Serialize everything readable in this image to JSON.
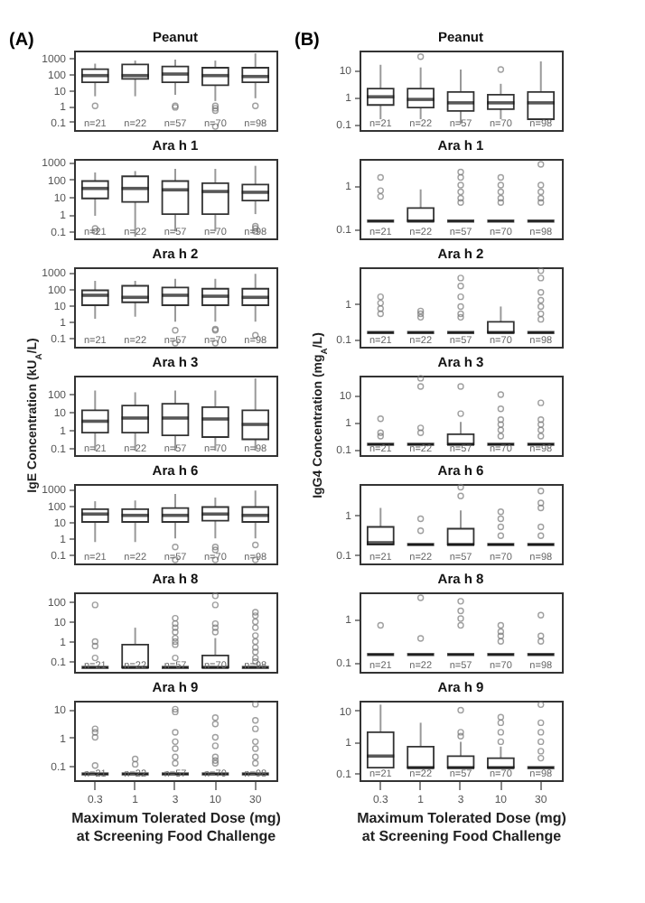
{
  "chart_data": [
    {
      "type": "box",
      "title": "Peanut",
      "categories": [
        "0.3",
        "1",
        "3",
        "10",
        "30"
      ],
      "log": true,
      "ylim": [
        0.03,
        3000
      ],
      "yticks": [
        0.1,
        1,
        10,
        100,
        1000
      ],
      "tick_labels": "y",
      "annotations": [
        "(A)",
        "n=21",
        "n=22",
        "n=57",
        "n=70",
        "n=98"
      ],
      "boxes": [
        {
          "low": 4,
          "q1": 30,
          "median": 80,
          "q3": 200,
          "high": 450,
          "outliers": [
            1
          ]
        },
        {
          "low": 4,
          "q1": 50,
          "median": 80,
          "q3": 400,
          "high": 700
        },
        {
          "low": 5,
          "q1": 30,
          "median": 100,
          "q3": 300,
          "high": 800,
          "outliers": [
            0.8,
            1
          ]
        },
        {
          "low": 2,
          "q1": 20,
          "median": 80,
          "q3": 250,
          "high": 700,
          "outliers": [
            0.5,
            0.7,
            1,
            0.05
          ]
        },
        {
          "low": 3,
          "q1": 30,
          "median": 70,
          "q3": 250,
          "high": 2000,
          "outliers": [
            1
          ]
        }
      ]
    },
    {
      "type": "box",
      "title": "Ara h 1",
      "categories": [
        "0.3",
        "1",
        "3",
        "10",
        "30"
      ],
      "log": true,
      "ylim": [
        0.04,
        1500
      ],
      "yticks": [
        0.1,
        1,
        10,
        100,
        1000
      ],
      "tick_labels": "y",
      "annotations": [
        "n=21",
        "n=22",
        "n=57",
        "n=70",
        "n=98"
      ],
      "boxes": [
        {
          "low": 0.8,
          "q1": 8,
          "median": 30,
          "q3": 80,
          "high": 250,
          "outliers": [
            0.1,
            0.15
          ]
        },
        {
          "low": 0.05,
          "q1": 5,
          "median": 30,
          "q3": 150,
          "high": 300
        },
        {
          "low": 0.1,
          "q1": 1,
          "median": 25,
          "q3": 80,
          "high": 400
        },
        {
          "low": 0.1,
          "q1": 1,
          "median": 20,
          "q3": 60,
          "high": 400
        },
        {
          "low": 1,
          "q1": 6,
          "median": 18,
          "q3": 50,
          "high": 600,
          "outliers": [
            0.1,
            0.15,
            0.2
          ]
        }
      ]
    },
    {
      "type": "box",
      "title": "Ara h 2",
      "categories": [
        "0.3",
        "1",
        "3",
        "10",
        "30"
      ],
      "log": true,
      "ylim": [
        0.03,
        2000
      ],
      "yticks": [
        0.1,
        1,
        10,
        100,
        1000
      ],
      "tick_labels": "y",
      "annotations": [
        "n=21",
        "n=22",
        "n=57",
        "n=70",
        "n=98"
      ],
      "boxes": [
        {
          "low": 1.5,
          "q1": 10,
          "median": 40,
          "q3": 80,
          "high": 300
        },
        {
          "low": 2,
          "q1": 15,
          "median": 30,
          "q3": 150,
          "high": 300
        },
        {
          "low": 1,
          "q1": 10,
          "median": 40,
          "q3": 120,
          "high": 400,
          "outliers": [
            0.3,
            0.05
          ]
        },
        {
          "low": 1,
          "q1": 10,
          "median": 35,
          "q3": 100,
          "high": 400,
          "outliers": [
            0.3,
            0.35,
            0.05
          ]
        },
        {
          "low": 1,
          "q1": 10,
          "median": 30,
          "q3": 100,
          "high": 800,
          "outliers": [
            0.15
          ]
        }
      ]
    },
    {
      "type": "box",
      "title": "Ara h 3",
      "ylabel": "IgE Concentration (kU$_{A}$/L)",
      "categories": [
        "0.3",
        "1",
        "3",
        "10",
        "30"
      ],
      "log": true,
      "ylim": [
        0.04,
        1000
      ],
      "yticks": [
        0.1,
        1,
        10,
        100
      ],
      "tick_labels": "y",
      "annotations": [
        "n=21",
        "n=22",
        "n=57",
        "n=70",
        "n=98"
      ],
      "boxes": [
        {
          "low": 0.07,
          "q1": 0.7,
          "median": 3,
          "q3": 12,
          "high": 150
        },
        {
          "low": 0.07,
          "q1": 0.7,
          "median": 4.5,
          "q3": 22,
          "high": 120
        },
        {
          "low": 0.07,
          "q1": 0.5,
          "median": 4.5,
          "q3": 28,
          "high": 150
        },
        {
          "low": 0.07,
          "q1": 0.4,
          "median": 4,
          "q3": 18,
          "high": 150
        },
        {
          "low": 0.07,
          "q1": 0.3,
          "median": 2,
          "q3": 12,
          "high": 700
        }
      ]
    },
    {
      "type": "box",
      "title": "Ara h 6",
      "categories": [
        "0.3",
        "1",
        "3",
        "10",
        "30"
      ],
      "log": true,
      "ylim": [
        0.03,
        2000
      ],
      "yticks": [
        0.1,
        1,
        10,
        100,
        1000
      ],
      "tick_labels": "y",
      "annotations": [
        "n=21",
        "n=22",
        "n=57",
        "n=70",
        "n=98"
      ],
      "boxes": [
        {
          "low": 0.6,
          "q1": 10,
          "median": 30,
          "q3": 60,
          "high": 180
        },
        {
          "low": 0.6,
          "q1": 10,
          "median": 25,
          "q3": 60,
          "high": 200
        },
        {
          "low": 1,
          "q1": 10,
          "median": 25,
          "q3": 70,
          "high": 500,
          "outliers": [
            0.3,
            0.05
          ]
        },
        {
          "low": 1,
          "q1": 12,
          "median": 30,
          "q3": 80,
          "high": 300,
          "outliers": [
            0.2,
            0.3,
            0.05
          ]
        },
        {
          "low": 1,
          "q1": 10,
          "median": 25,
          "q3": 80,
          "high": 800,
          "outliers": [
            0.4,
            0.05
          ]
        }
      ]
    },
    {
      "type": "box",
      "title": "Ara h 8",
      "categories": [
        "0.3",
        "1",
        "3",
        "10",
        "30"
      ],
      "log": true,
      "ylim": [
        0.03,
        300
      ],
      "yticks": [
        0.1,
        1,
        10,
        100
      ],
      "tick_labels": "y",
      "annotations": [
        "n=21",
        "n=22",
        "n=57",
        "n=70",
        "n=98"
      ],
      "boxes": [
        {
          "low": 0.05,
          "q1": 0.05,
          "median": 0.05,
          "q3": 0.05,
          "high": 0.05,
          "outliers": [
            0.15,
            0.6,
            1,
            70
          ]
        },
        {
          "low": 0.05,
          "q1": 0.05,
          "median": 0.05,
          "q3": 0.7,
          "high": 5
        },
        {
          "low": 0.05,
          "q1": 0.05,
          "median": 0.05,
          "q3": 0.05,
          "high": 0.05,
          "outliers": [
            0.15,
            0.7,
            1,
            1.5,
            3,
            5,
            8,
            15
          ]
        },
        {
          "low": 0.05,
          "q1": 0.05,
          "median": 0.05,
          "q3": 0.2,
          "high": 1.5,
          "outliers": [
            3,
            5,
            8,
            70,
            200
          ]
        },
        {
          "low": 0.05,
          "q1": 0.05,
          "median": 0.05,
          "q3": 0.05,
          "high": 0.05,
          "outliers": [
            0.1,
            0.15,
            0.3,
            0.5,
            1,
            2,
            5,
            10,
            20,
            30
          ]
        }
      ]
    },
    {
      "type": "box",
      "title": "Ara h 9",
      "xlabel": "Maximum Tolerated Dose (mg)\nat Screening Food Challenge",
      "categories": [
        "0.3",
        "1",
        "3",
        "10",
        "30"
      ],
      "log": true,
      "ylim": [
        0.03,
        20
      ],
      "yticks": [
        0.1,
        1,
        10
      ],
      "annotations": [
        "n=21",
        "n=22",
        "n=57",
        "n=70",
        "n=98"
      ],
      "boxes": [
        {
          "low": 0.05,
          "q1": 0.05,
          "median": 0.05,
          "q3": 0.05,
          "high": 0.05,
          "outliers": [
            0.1,
            1,
            1.5,
            2
          ]
        },
        {
          "low": 0.05,
          "q1": 0.05,
          "median": 0.05,
          "q3": 0.05,
          "high": 0.05,
          "outliers": [
            0.11,
            0.17
          ]
        },
        {
          "low": 0.05,
          "q1": 0.05,
          "median": 0.05,
          "q3": 0.05,
          "high": 0.05,
          "outliers": [
            0.12,
            0.2,
            0.4,
            0.7,
            1.5,
            8,
            10
          ]
        },
        {
          "low": 0.05,
          "q1": 0.05,
          "median": 0.05,
          "q3": 0.05,
          "high": 0.05,
          "outliers": [
            0.12,
            0.15,
            0.2,
            0.5,
            1,
            3,
            5
          ]
        },
        {
          "low": 0.05,
          "q1": 0.05,
          "median": 0.05,
          "q3": 0.05,
          "high": 0.05,
          "outliers": [
            0.12,
            0.2,
            0.4,
            0.7,
            2,
            4,
            15
          ]
        }
      ]
    },
    {
      "type": "box",
      "title": "Peanut",
      "categories": [
        "0.3",
        "1",
        "3",
        "10",
        "30"
      ],
      "log": true,
      "ylim": [
        0.06,
        50
      ],
      "yticks": [
        0.1,
        1,
        10
      ],
      "tick_labels": "y",
      "annotations": [
        "(B)",
        "n=21",
        "n=22",
        "n=57",
        "n=70",
        "n=98"
      ],
      "boxes": [
        {
          "low": 0.15,
          "q1": 0.5,
          "median": 1,
          "q3": 2,
          "high": 15
        },
        {
          "low": 0.15,
          "q1": 0.4,
          "median": 0.8,
          "q3": 2,
          "high": 12,
          "outliers": [
            30
          ]
        },
        {
          "low": 0.1,
          "q1": 0.3,
          "median": 0.6,
          "q3": 1.5,
          "high": 10
        },
        {
          "low": 0.15,
          "q1": 0.35,
          "median": 0.6,
          "q3": 1.2,
          "high": 3,
          "outliers": [
            10
          ]
        },
        {
          "low": 0.15,
          "q1": 0.15,
          "median": 0.6,
          "q3": 1.5,
          "high": 20
        }
      ]
    },
    {
      "type": "box",
      "title": "Ara h 1",
      "categories": [
        "0.3",
        "1",
        "3",
        "10",
        "30"
      ],
      "log": true,
      "ylim": [
        0.06,
        4
      ],
      "yticks": [
        0.1,
        1
      ],
      "tick_labels": "y",
      "annotations": [
        "n=21",
        "n=22",
        "n=57",
        "n=70",
        "n=98"
      ],
      "boxes": [
        {
          "low": 0.15,
          "q1": 0.15,
          "median": 0.15,
          "q3": 0.15,
          "high": 0.15,
          "outliers": [
            0.55,
            0.75,
            1.5
          ]
        },
        {
          "low": 0.15,
          "q1": 0.15,
          "median": 0.15,
          "q3": 0.3,
          "high": 0.8
        },
        {
          "low": 0.15,
          "q1": 0.15,
          "median": 0.15,
          "q3": 0.15,
          "high": 0.15,
          "outliers": [
            0.4,
            0.5,
            0.7,
            1,
            1.5,
            2
          ]
        },
        {
          "low": 0.15,
          "q1": 0.15,
          "median": 0.15,
          "q3": 0.15,
          "high": 0.15,
          "outliers": [
            0.4,
            0.5,
            0.7,
            1,
            1.5
          ]
        },
        {
          "low": 0.15,
          "q1": 0.15,
          "median": 0.15,
          "q3": 0.15,
          "high": 0.15,
          "outliers": [
            0.4,
            0.5,
            0.7,
            1,
            3
          ]
        }
      ]
    },
    {
      "type": "box",
      "title": "Ara h 2",
      "categories": [
        "0.3",
        "1",
        "3",
        "10",
        "30"
      ],
      "log": true,
      "ylim": [
        0.06,
        10
      ],
      "yticks": [
        0.1,
        1
      ],
      "tick_labels": "y",
      "annotations": [
        "n=21",
        "n=22",
        "n=57",
        "n=70",
        "n=98"
      ],
      "boxes": [
        {
          "low": 0.15,
          "q1": 0.15,
          "median": 0.15,
          "q3": 0.15,
          "high": 0.15,
          "outliers": [
            0.5,
            0.7,
            1,
            1.5
          ]
        },
        {
          "low": 0.15,
          "q1": 0.15,
          "median": 0.15,
          "q3": 0.15,
          "high": 0.15,
          "outliers": [
            0.4,
            0.5,
            0.6
          ]
        },
        {
          "low": 0.15,
          "q1": 0.15,
          "median": 0.15,
          "q3": 0.15,
          "high": 0.15,
          "outliers": [
            0.4,
            0.5,
            0.8,
            1.5,
            3,
            5
          ]
        },
        {
          "low": 0.15,
          "q1": 0.15,
          "median": 0.15,
          "q3": 0.3,
          "high": 0.8
        },
        {
          "low": 0.15,
          "q1": 0.15,
          "median": 0.15,
          "q3": 0.15,
          "high": 0.15,
          "outliers": [
            0.35,
            0.5,
            0.8,
            1.2,
            2,
            5,
            8
          ]
        }
      ]
    },
    {
      "type": "box",
      "title": "Ara h 3",
      "ylabel": "IgG4 Concentration (mg$_{A}$/L)",
      "categories": [
        "0.3",
        "1",
        "3",
        "10",
        "30"
      ],
      "log": true,
      "ylim": [
        0.06,
        50
      ],
      "yticks": [
        0.1,
        1,
        10
      ],
      "tick_labels": "y",
      "annotations": [
        "n=21",
        "n=22",
        "n=57",
        "n=70",
        "n=98"
      ],
      "boxes": [
        {
          "low": 0.15,
          "q1": 0.15,
          "median": 0.15,
          "q3": 0.15,
          "high": 0.15,
          "outliers": [
            0.3,
            0.4,
            1.3
          ]
        },
        {
          "low": 0.15,
          "q1": 0.15,
          "median": 0.15,
          "q3": 0.15,
          "high": 0.15,
          "outliers": [
            0.4,
            0.6,
            20,
            40
          ]
        },
        {
          "low": 0.15,
          "q1": 0.15,
          "median": 0.15,
          "q3": 0.35,
          "high": 1,
          "outliers": [
            2,
            20
          ]
        },
        {
          "low": 0.15,
          "q1": 0.15,
          "median": 0.15,
          "q3": 0.15,
          "high": 0.15,
          "outliers": [
            0.3,
            0.5,
            0.8,
            1.2,
            3,
            10
          ]
        },
        {
          "low": 0.15,
          "q1": 0.15,
          "median": 0.15,
          "q3": 0.15,
          "high": 0.15,
          "outliers": [
            0.3,
            0.5,
            0.8,
            1.2,
            5
          ]
        }
      ]
    },
    {
      "type": "box",
      "title": "Ara h 6",
      "categories": [
        "0.3",
        "1",
        "3",
        "10",
        "30"
      ],
      "log": true,
      "ylim": [
        0.06,
        6
      ],
      "yticks": [
        0.1,
        1
      ],
      "tick_labels": "y",
      "annotations": [
        "n=21",
        "n=22",
        "n=57",
        "n=70",
        "n=98"
      ],
      "boxes": [
        {
          "low": 0.18,
          "q1": 0.18,
          "median": 0.2,
          "q3": 0.5,
          "high": 1.5
        },
        {
          "low": 0.18,
          "q1": 0.18,
          "median": 0.18,
          "q3": 0.18,
          "high": 0.18,
          "outliers": [
            0.4,
            0.8
          ]
        },
        {
          "low": 0.18,
          "q1": 0.18,
          "median": 0.18,
          "q3": 0.45,
          "high": 1.3,
          "outliers": [
            3,
            5
          ]
        },
        {
          "low": 0.18,
          "q1": 0.18,
          "median": 0.18,
          "q3": 0.18,
          "high": 0.18,
          "outliers": [
            0.3,
            0.5,
            0.8,
            1.2
          ]
        },
        {
          "low": 0.18,
          "q1": 0.18,
          "median": 0.18,
          "q3": 0.18,
          "high": 0.18,
          "outliers": [
            0.3,
            0.5,
            1.5,
            2,
            4
          ]
        }
      ]
    },
    {
      "type": "box",
      "title": "Ara h 8",
      "categories": [
        "0.3",
        "1",
        "3",
        "10",
        "30"
      ],
      "log": true,
      "ylim": [
        0.06,
        4
      ],
      "yticks": [
        0.1,
        1
      ],
      "tick_labels": "y",
      "annotations": [
        "n=21",
        "n=22",
        "n=57",
        "n=70",
        "n=98"
      ],
      "boxes": [
        {
          "low": 0.15,
          "q1": 0.15,
          "median": 0.15,
          "q3": 0.15,
          "high": 0.15,
          "outliers": [
            0.7
          ]
        },
        {
          "low": 0.15,
          "q1": 0.15,
          "median": 0.15,
          "q3": 0.15,
          "high": 0.15,
          "outliers": [
            0.35,
            3
          ]
        },
        {
          "low": 0.15,
          "q1": 0.15,
          "median": 0.15,
          "q3": 0.15,
          "high": 0.15,
          "outliers": [
            0.7,
            1,
            1.5,
            2.5
          ]
        },
        {
          "low": 0.15,
          "q1": 0.15,
          "median": 0.15,
          "q3": 0.15,
          "high": 0.15,
          "outliers": [
            0.3,
            0.4,
            0.5,
            0.7
          ]
        },
        {
          "low": 0.15,
          "q1": 0.15,
          "median": 0.15,
          "q3": 0.15,
          "high": 0.15,
          "outliers": [
            0.3,
            0.4,
            1.2
          ]
        }
      ]
    },
    {
      "type": "box",
      "title": "Ara h 9",
      "xlabel": "Maximum Tolerated Dose (mg)\nat Screening Food Challenge",
      "categories": [
        "0.3",
        "1",
        "3",
        "10",
        "30"
      ],
      "log": true,
      "ylim": [
        0.06,
        20
      ],
      "yticks": [
        0.1,
        1,
        10
      ],
      "annotations": [
        "n=21",
        "n=22",
        "n=57",
        "n=70",
        "n=98"
      ],
      "boxes": [
        {
          "low": 0.15,
          "q1": 0.15,
          "median": 0.35,
          "q3": 2,
          "high": 15
        },
        {
          "low": 0.15,
          "q1": 0.15,
          "median": 0.15,
          "q3": 0.7,
          "high": 4
        },
        {
          "low": 0.15,
          "q1": 0.15,
          "median": 0.15,
          "q3": 0.35,
          "high": 1,
          "outliers": [
            1.5,
            2,
            10
          ]
        },
        {
          "low": 0.15,
          "q1": 0.15,
          "median": 0.15,
          "q3": 0.3,
          "high": 0.7,
          "outliers": [
            1,
            2,
            4,
            6
          ]
        },
        {
          "low": 0.15,
          "q1": 0.15,
          "median": 0.15,
          "q3": 0.15,
          "high": 0.15,
          "outliers": [
            0.3,
            0.5,
            1,
            2,
            4,
            15
          ]
        }
      ]
    }
  ]
}
